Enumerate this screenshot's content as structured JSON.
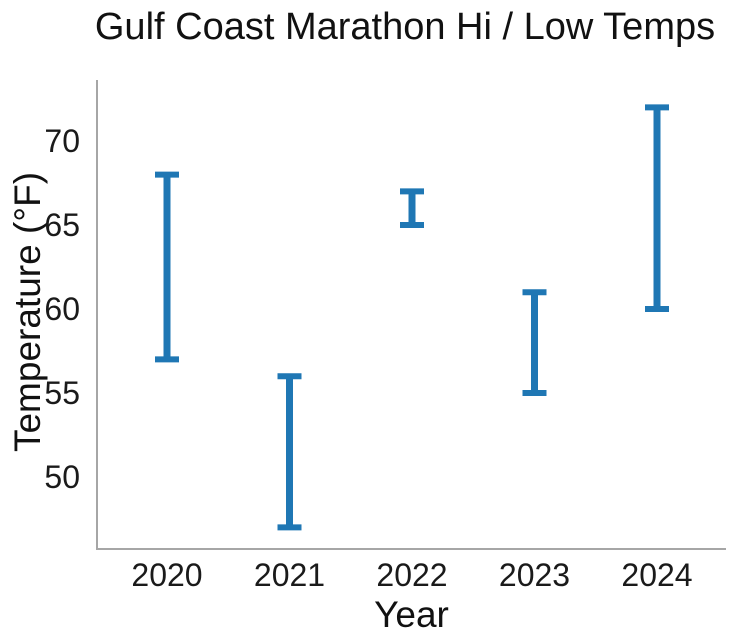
{
  "chart_data": {
    "type": "errorbar_range",
    "title": "Gulf Coast Marathon Hi / Low Temps",
    "xlabel": "Year",
    "ylabel": "Temperature (°F)",
    "categories": [
      "2020",
      "2021",
      "2022",
      "2023",
      "2024"
    ],
    "series": [
      {
        "name": "High",
        "values": [
          68,
          56,
          67,
          61,
          72
        ]
      },
      {
        "name": "Low",
        "values": [
          57,
          47,
          65,
          55,
          60
        ]
      }
    ],
    "yticks": [
      50,
      55,
      60,
      65,
      70
    ],
    "ylim": [
      45.8,
      73.7
    ],
    "grid": false,
    "legend": "none",
    "bar_color": "#1f77b4",
    "spine_color": "#a6a6a6",
    "text_color": "#111111"
  }
}
